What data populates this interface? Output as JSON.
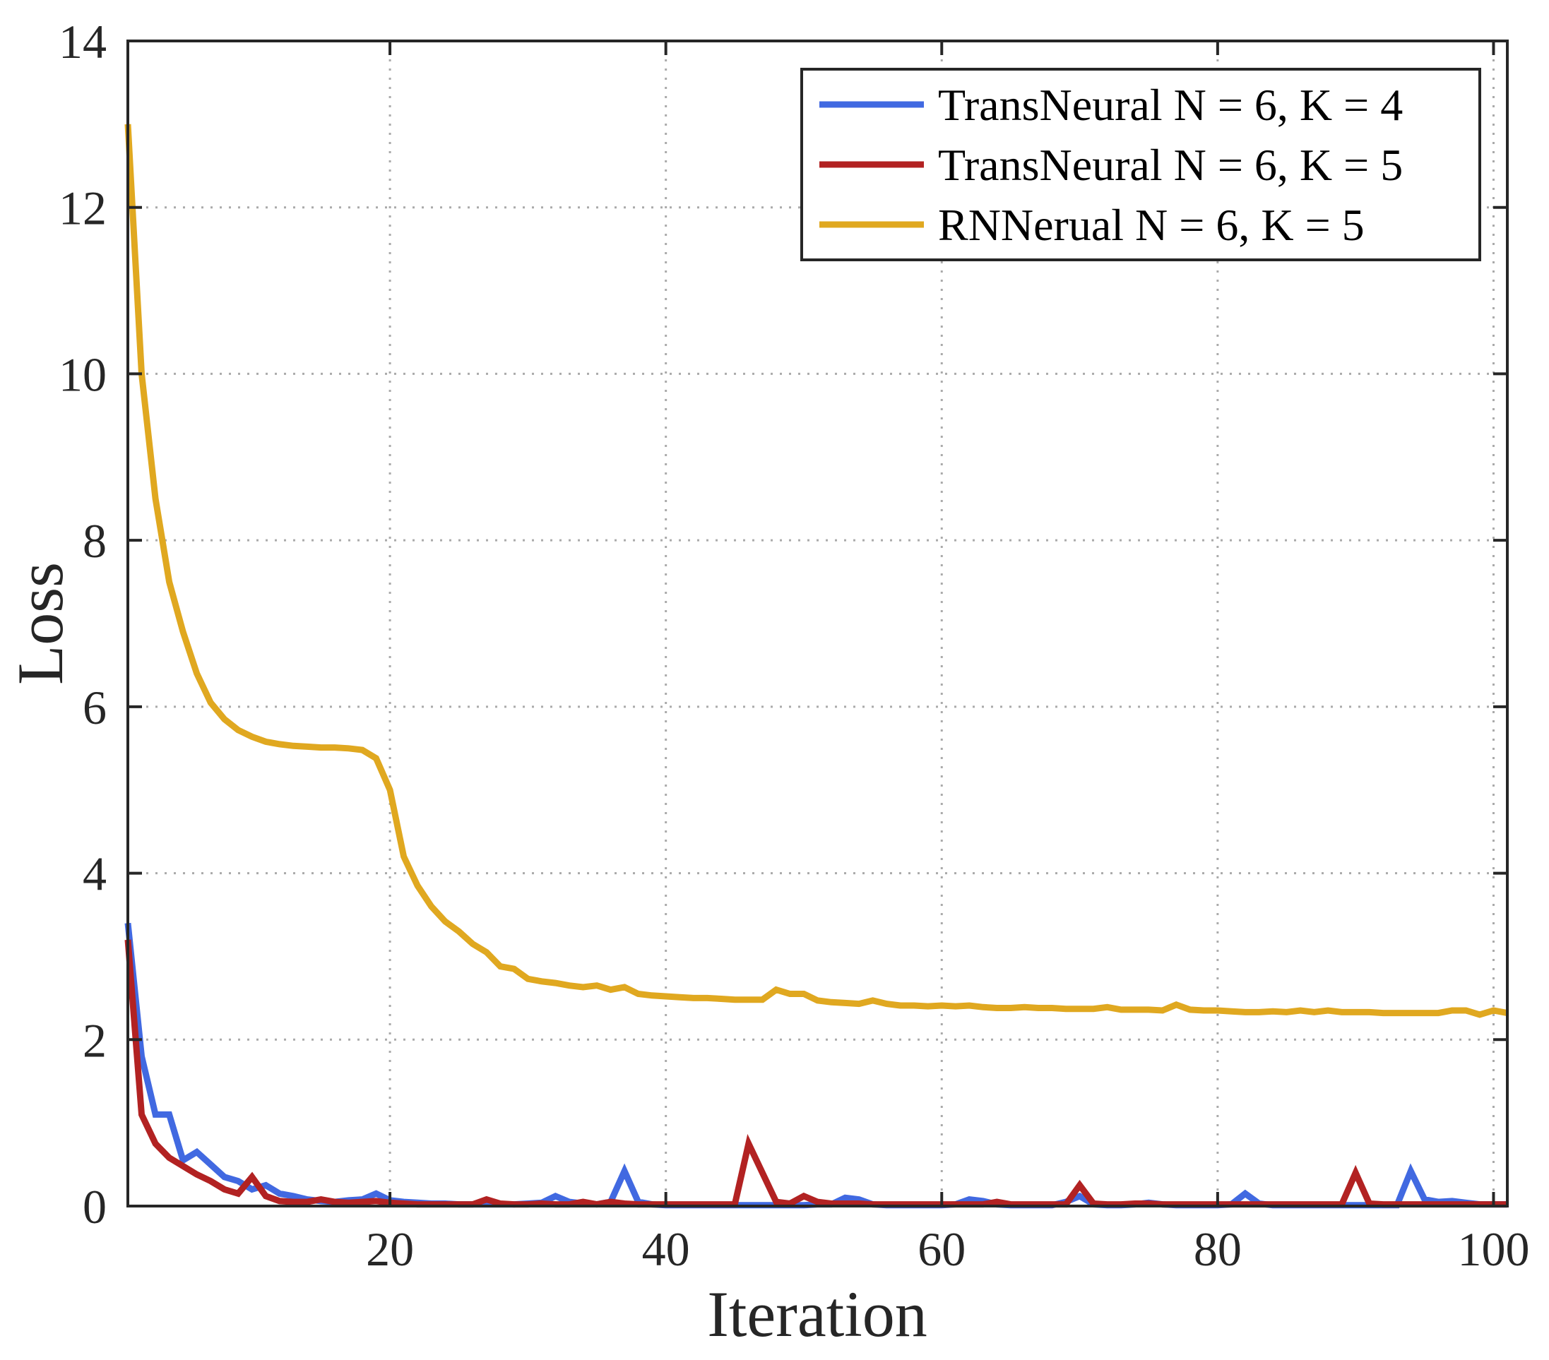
{
  "chart_data": {
    "type": "line",
    "title": "",
    "xlabel": "Iteration",
    "ylabel": "Loss",
    "xlim": [
      1,
      101
    ],
    "ylim": [
      0,
      14
    ],
    "xticks": [
      20,
      40,
      60,
      80,
      100
    ],
    "yticks": [
      0,
      2,
      4,
      6,
      8,
      10,
      12,
      14
    ],
    "xtick_labels": [
      "20",
      "40",
      "60",
      "80",
      "100"
    ],
    "ytick_labels": [
      "0",
      "2",
      "4",
      "6",
      "8",
      "10",
      "12",
      "14"
    ],
    "grid": true,
    "legend_position": "top-right",
    "series": [
      {
        "name": "TransNeural N = 6, K = 4",
        "color": "#4169E1",
        "values": [
          3.4,
          1.8,
          1.1,
          1.1,
          0.55,
          0.65,
          0.5,
          0.35,
          0.3,
          0.2,
          0.25,
          0.15,
          0.12,
          0.08,
          0.06,
          0.05,
          0.07,
          0.08,
          0.15,
          0.07,
          0.05,
          0.04,
          0.03,
          0.03,
          0.02,
          0.02,
          0.02,
          0.02,
          0.02,
          0.03,
          0.04,
          0.12,
          0.05,
          0.03,
          0.02,
          0.05,
          0.42,
          0.05,
          0.02,
          0.01,
          0.01,
          0.01,
          0.01,
          0.01,
          0.01,
          0.01,
          0.01,
          0.01,
          0.01,
          0.01,
          0.02,
          0.02,
          0.1,
          0.08,
          0.02,
          0.01,
          0.01,
          0.01,
          0.01,
          0.01,
          0.02,
          0.08,
          0.06,
          0.02,
          0.01,
          0.01,
          0.01,
          0.01,
          0.05,
          0.12,
          0.02,
          0.01,
          0.01,
          0.02,
          0.04,
          0.02,
          0.01,
          0.01,
          0.01,
          0.01,
          0.02,
          0.15,
          0.03,
          0.01,
          0.01,
          0.01,
          0.01,
          0.01,
          0.01,
          0.01,
          0.01,
          0.01,
          0.01,
          0.42,
          0.08,
          0.05,
          0.06,
          0.04,
          0.02,
          0.02,
          0.02
        ]
      },
      {
        "name": "TransNeural N = 6, K = 5",
        "color": "#B22222",
        "values": [
          3.2,
          1.1,
          0.75,
          0.58,
          0.48,
          0.38,
          0.3,
          0.2,
          0.15,
          0.35,
          0.12,
          0.06,
          0.05,
          0.05,
          0.08,
          0.05,
          0.04,
          0.05,
          0.06,
          0.04,
          0.03,
          0.02,
          0.02,
          0.02,
          0.02,
          0.02,
          0.08,
          0.03,
          0.02,
          0.02,
          0.03,
          0.02,
          0.02,
          0.05,
          0.02,
          0.05,
          0.03,
          0.02,
          0.02,
          0.02,
          0.02,
          0.02,
          0.02,
          0.02,
          0.02,
          0.75,
          0.4,
          0.05,
          0.03,
          0.12,
          0.05,
          0.03,
          0.03,
          0.03,
          0.02,
          0.02,
          0.02,
          0.02,
          0.02,
          0.02,
          0.02,
          0.02,
          0.02,
          0.05,
          0.02,
          0.02,
          0.02,
          0.02,
          0.02,
          0.25,
          0.03,
          0.02,
          0.02,
          0.03,
          0.03,
          0.02,
          0.02,
          0.02,
          0.02,
          0.02,
          0.02,
          0.02,
          0.02,
          0.02,
          0.02,
          0.02,
          0.02,
          0.02,
          0.02,
          0.4,
          0.03,
          0.02,
          0.02,
          0.02,
          0.02,
          0.02,
          0.02,
          0.02,
          0.02,
          0.02,
          0.02
        ]
      },
      {
        "name": "RNNerual N = 6, K = 5",
        "color": "#E0A820",
        "values": [
          13.0,
          10.0,
          8.5,
          7.5,
          6.9,
          6.4,
          6.05,
          5.85,
          5.72,
          5.64,
          5.58,
          5.55,
          5.53,
          5.52,
          5.51,
          5.51,
          5.5,
          5.48,
          5.38,
          5.0,
          4.2,
          3.85,
          3.6,
          3.42,
          3.3,
          3.15,
          3.05,
          2.88,
          2.85,
          2.73,
          2.7,
          2.68,
          2.65,
          2.63,
          2.65,
          2.6,
          2.63,
          2.55,
          2.53,
          2.52,
          2.51,
          2.5,
          2.5,
          2.49,
          2.48,
          2.48,
          2.48,
          2.6,
          2.55,
          2.55,
          2.47,
          2.45,
          2.44,
          2.43,
          2.47,
          2.43,
          2.41,
          2.41,
          2.4,
          2.41,
          2.4,
          2.41,
          2.39,
          2.38,
          2.38,
          2.39,
          2.38,
          2.38,
          2.37,
          2.37,
          2.37,
          2.39,
          2.36,
          2.36,
          2.36,
          2.35,
          2.42,
          2.36,
          2.35,
          2.35,
          2.34,
          2.33,
          2.33,
          2.34,
          2.33,
          2.35,
          2.33,
          2.35,
          2.33,
          2.33,
          2.33,
          2.32,
          2.32,
          2.32,
          2.32,
          2.32,
          2.35,
          2.35,
          2.3,
          2.35,
          2.32
        ]
      }
    ]
  }
}
